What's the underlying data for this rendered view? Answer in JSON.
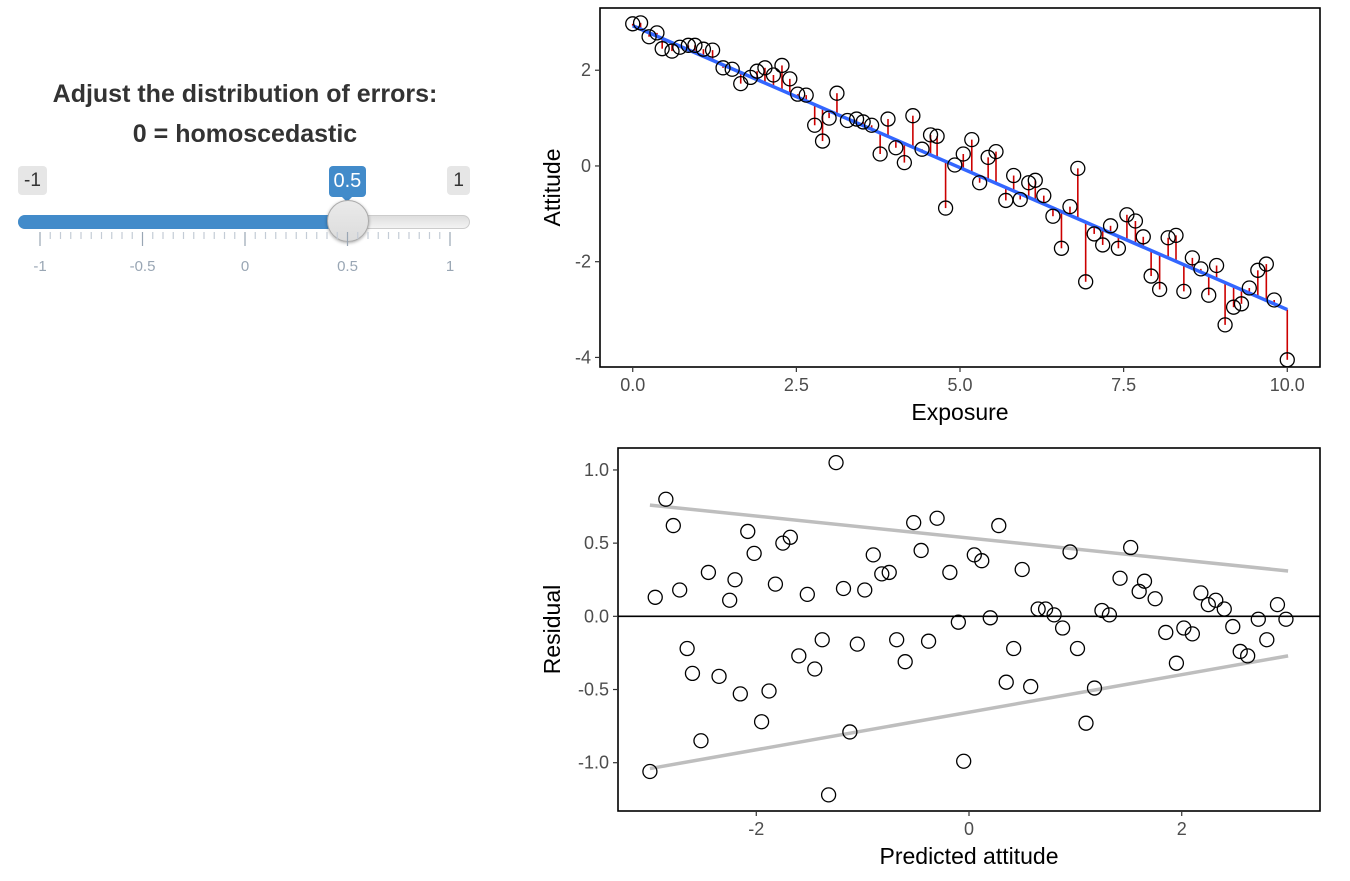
{
  "controls": {
    "title_line1": "Adjust the distribution of errors:",
    "title_line2": "0 = homoscedastic",
    "slider": {
      "min": -1,
      "max": 1,
      "value": 0.5,
      "min_label": "-1",
      "max_label": "1",
      "value_label": "0.5",
      "tick_labels": [
        "-1",
        "-0.5",
        "0",
        "0.5",
        "1"
      ],
      "tick_values": [
        -1,
        -0.5,
        0,
        0.5,
        1
      ],
      "fill_color": "#428bca"
    }
  },
  "chart_data": [
    {
      "type": "scatter",
      "title": "",
      "xlabel": "Exposure",
      "ylabel": "Attitude",
      "xlim": [
        -0.5,
        10.5
      ],
      "ylim": [
        -4.2,
        3.3
      ],
      "xticks": [
        0,
        2.5,
        5,
        7.5,
        10
      ],
      "xtick_labels": [
        "0.0",
        "2.5",
        "5.0",
        "7.5",
        "10.0"
      ],
      "yticks": [
        -4,
        -2,
        0,
        2
      ],
      "ytick_labels": [
        "-4",
        "-2",
        "0",
        "2"
      ],
      "fit_line": {
        "x": [
          0,
          10
        ],
        "y": [
          2.93,
          -3.0
        ],
        "color": "#3366ff"
      },
      "residual_segment_color": "#cc0000",
      "points": {
        "x": [
          0.0,
          0.12,
          0.25,
          0.37,
          0.45,
          0.6,
          0.72,
          0.85,
          0.95,
          1.08,
          1.22,
          1.38,
          1.52,
          1.65,
          1.8,
          1.9,
          2.02,
          2.15,
          2.28,
          2.4,
          2.52,
          2.65,
          2.78,
          2.9,
          3.0,
          3.12,
          3.28,
          3.42,
          3.52,
          3.65,
          3.78,
          3.9,
          4.02,
          4.15,
          4.28,
          4.42,
          4.55,
          4.65,
          4.78,
          4.92,
          5.05,
          5.18,
          5.3,
          5.43,
          5.55,
          5.7,
          5.82,
          5.92,
          6.05,
          6.15,
          6.28,
          6.42,
          6.55,
          6.68,
          6.8,
          6.92,
          7.05,
          7.18,
          7.3,
          7.42,
          7.55,
          7.68,
          7.8,
          7.92,
          8.05,
          8.18,
          8.3,
          8.42,
          8.55,
          8.68,
          8.8,
          8.92,
          9.05,
          9.18,
          9.3,
          9.42,
          9.55,
          9.68,
          9.8,
          10.0
        ],
        "y": [
          2.97,
          2.99,
          2.7,
          2.78,
          2.45,
          2.4,
          2.48,
          2.52,
          2.52,
          2.44,
          2.42,
          2.05,
          2.02,
          1.72,
          1.85,
          1.98,
          2.05,
          1.9,
          2.1,
          1.82,
          1.5,
          1.48,
          0.85,
          0.52,
          1.0,
          1.52,
          0.95,
          0.98,
          0.92,
          0.85,
          0.25,
          0.98,
          0.38,
          0.07,
          1.05,
          0.35,
          0.65,
          0.62,
          -0.88,
          0.02,
          0.25,
          0.55,
          -0.35,
          0.18,
          0.3,
          -0.72,
          -0.2,
          -0.7,
          -0.35,
          -0.3,
          -0.62,
          -1.05,
          -1.72,
          -0.85,
          -0.05,
          -2.42,
          -1.42,
          -1.65,
          -1.25,
          -1.72,
          -1.02,
          -1.15,
          -1.48,
          -2.3,
          -2.58,
          -1.5,
          -1.45,
          -2.62,
          -1.92,
          -2.15,
          -2.7,
          -2.08,
          -3.32,
          -2.95,
          -2.88,
          -2.55,
          -2.18,
          -2.05,
          -2.8,
          -4.05
        ]
      }
    },
    {
      "type": "scatter",
      "title": "",
      "xlabel": "Predicted attitude",
      "ylabel": "Residual",
      "xlim": [
        -3.3,
        3.3
      ],
      "ylim": [
        -1.33,
        1.15
      ],
      "xticks": [
        -2,
        0,
        2
      ],
      "xtick_labels": [
        "-2",
        "0",
        "2"
      ],
      "yticks": [
        -1,
        -0.5,
        0,
        0.5,
        1
      ],
      "ytick_labels": [
        "-1.0",
        "-0.5",
        "0.0",
        "0.5",
        "1.0"
      ],
      "zero_line": 0,
      "envelope_color": "#bebebe",
      "upper_envelope": {
        "x": [
          -3.0,
          3.0
        ],
        "y": [
          0.76,
          0.31
        ]
      },
      "lower_envelope": {
        "x": [
          -3.0,
          3.0
        ],
        "y": [
          -1.04,
          -0.27
        ]
      },
      "points": {
        "x": [
          -3.0,
          -2.95,
          -2.85,
          -2.78,
          -2.72,
          -2.65,
          -2.6,
          -2.52,
          -2.45,
          -2.35,
          -2.25,
          -2.2,
          -2.15,
          -2.08,
          -2.02,
          -1.95,
          -1.88,
          -1.82,
          -1.75,
          -1.68,
          -1.6,
          -1.52,
          -1.45,
          -1.38,
          -1.32,
          -1.25,
          -1.18,
          -1.12,
          -1.05,
          -0.98,
          -0.9,
          -0.82,
          -0.75,
          -0.68,
          -0.6,
          -0.52,
          -0.45,
          -0.38,
          -0.3,
          -0.18,
          -0.1,
          -0.05,
          0.05,
          0.12,
          0.2,
          0.28,
          0.35,
          0.42,
          0.5,
          0.58,
          0.65,
          0.72,
          0.8,
          0.88,
          0.95,
          1.02,
          1.1,
          1.18,
          1.25,
          1.32,
          1.42,
          1.52,
          1.6,
          1.65,
          1.75,
          1.85,
          1.95,
          2.02,
          2.1,
          2.18,
          2.25,
          2.32,
          2.4,
          2.48,
          2.55,
          2.62,
          2.72,
          2.8,
          2.9,
          2.98
        ],
        "y": [
          -1.06,
          0.13,
          0.8,
          0.62,
          0.18,
          -0.22,
          -0.39,
          -0.85,
          0.3,
          -0.41,
          0.11,
          0.25,
          -0.53,
          0.58,
          0.43,
          -0.72,
          -0.51,
          0.22,
          0.5,
          0.54,
          -0.27,
          0.15,
          -0.36,
          -0.16,
          -1.22,
          1.05,
          0.19,
          -0.79,
          -0.19,
          0.18,
          0.42,
          0.29,
          0.3,
          -0.16,
          -0.31,
          0.64,
          0.45,
          -0.17,
          0.67,
          0.3,
          -0.04,
          -0.99,
          0.42,
          0.38,
          -0.01,
          0.62,
          -0.45,
          -0.22,
          0.32,
          -0.48,
          0.05,
          0.05,
          0.01,
          -0.08,
          0.44,
          -0.22,
          -0.73,
          -0.49,
          0.04,
          0.01,
          0.26,
          0.47,
          0.17,
          0.24,
          0.12,
          -0.11,
          -0.32,
          -0.08,
          -0.12,
          0.16,
          0.08,
          0.11,
          0.05,
          -0.07,
          -0.24,
          -0.27,
          -0.02,
          -0.16,
          0.08,
          -0.02
        ]
      }
    }
  ]
}
